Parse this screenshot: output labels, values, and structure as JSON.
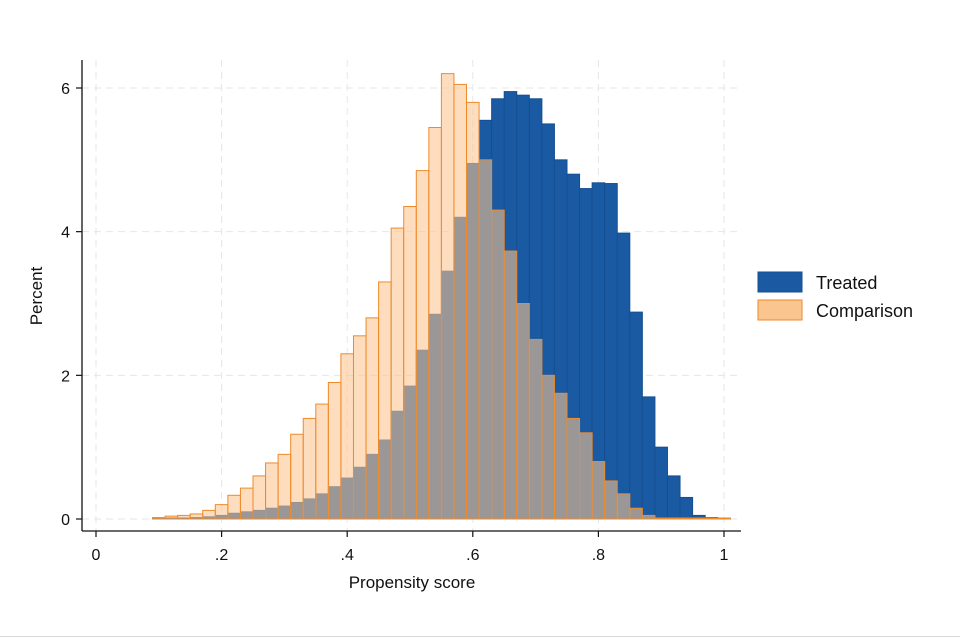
{
  "chart_data": {
    "type": "bar",
    "subtype": "overlaid-histogram",
    "title": "",
    "xlabel": "Propensity score",
    "ylabel": "Percent",
    "xlim": [
      0,
      1
    ],
    "ylim": [
      0,
      6.4
    ],
    "xticks": [
      0,
      0.2,
      0.4,
      0.6,
      0.8,
      1
    ],
    "xtick_labels": [
      "0",
      ".2",
      ".4",
      ".6",
      ".8",
      "1"
    ],
    "yticks": [
      0,
      2,
      4,
      6
    ],
    "ytick_labels": [
      "0",
      "2",
      "4",
      "6"
    ],
    "grid": true,
    "legend_position": "right",
    "bin_width": 0.02,
    "bin_starts": [
      0.09,
      0.11,
      0.13,
      0.15,
      0.17,
      0.19,
      0.21,
      0.23,
      0.25,
      0.27,
      0.29,
      0.31,
      0.33,
      0.35,
      0.37,
      0.39,
      0.41,
      0.43,
      0.45,
      0.47,
      0.49,
      0.51,
      0.53,
      0.55,
      0.57,
      0.59,
      0.61,
      0.63,
      0.65,
      0.67,
      0.69,
      0.71,
      0.73,
      0.75,
      0.77,
      0.79,
      0.81,
      0.83,
      0.85,
      0.87,
      0.89,
      0.91,
      0.93,
      0.95,
      0.97,
      0.99
    ],
    "series": [
      {
        "name": "Treated",
        "color": "#1a5aa3",
        "values": [
          0.0,
          0.0,
          0.01,
          0.02,
          0.03,
          0.05,
          0.08,
          0.1,
          0.12,
          0.15,
          0.18,
          0.23,
          0.28,
          0.35,
          0.45,
          0.57,
          0.72,
          0.9,
          1.1,
          1.5,
          1.85,
          2.35,
          2.85,
          3.45,
          4.2,
          4.95,
          5.55,
          5.85,
          5.95,
          5.9,
          5.85,
          5.5,
          5.0,
          4.8,
          4.6,
          4.68,
          4.67,
          3.98,
          2.88,
          1.7,
          1.0,
          0.6,
          0.3,
          0.05,
          0.02,
          0.0
        ]
      },
      {
        "name": "Comparison",
        "color": "#fbc58f",
        "values": [
          0.02,
          0.04,
          0.05,
          0.07,
          0.12,
          0.2,
          0.33,
          0.43,
          0.6,
          0.78,
          0.9,
          1.18,
          1.4,
          1.6,
          1.9,
          2.3,
          2.55,
          2.8,
          3.3,
          4.05,
          4.35,
          4.85,
          5.45,
          6.2,
          6.05,
          5.8,
          5.0,
          4.3,
          3.73,
          3.0,
          2.5,
          2.0,
          1.75,
          1.4,
          1.2,
          0.8,
          0.53,
          0.35,
          0.15,
          0.05,
          0.01,
          0.01,
          0.0,
          0.0,
          0.0,
          0.0
        ]
      }
    ]
  }
}
